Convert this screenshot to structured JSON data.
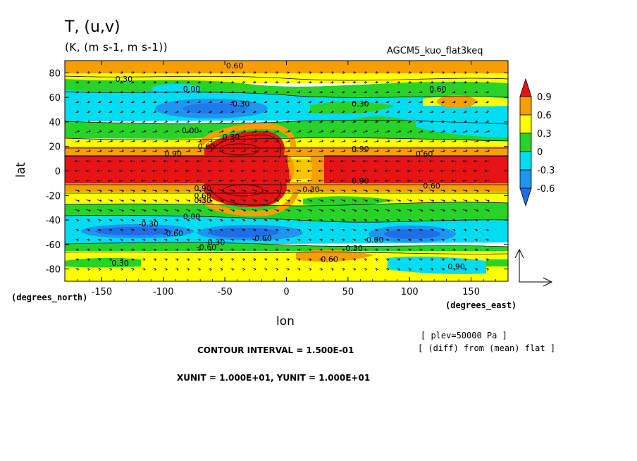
{
  "title": "T, (u,v)",
  "units": "(K, (m s-1, m s-1))",
  "experiment": "AGCM5_kuo_flat3keq",
  "xlabel": "lon",
  "ylabel": "lat",
  "x_unit_label": "(degrees_east)",
  "y_unit_label": "(degrees_north)",
  "plev_note": "[ plev=50000 Pa ]",
  "diff_note": "[ (diff) from (mean) flat ]",
  "contour_interval": "CONTOUR INTERVAL = 1.500E-01",
  "vector_units": "XUNIT = 1.000E+01, YUNIT = 1.000E+01",
  "colors": {
    "below_-0.6": "#1e6ee6",
    "-0.6_-0.3": "#1e96f0",
    "-0.3_0": "#00dcf0",
    "0_0.3": "#28d228",
    "0.3_0.6": "#ffff00",
    "0.6_0.9": "#f5a000",
    "above_0.9": "#e61414"
  },
  "chart_data": {
    "type": "heatmap",
    "title": "T, (u,v)",
    "xlabel": "lon",
    "ylabel": "lat",
    "xlim": [
      -180,
      180
    ],
    "ylim": [
      -90,
      90
    ],
    "x_ticks": [
      "-150",
      "-100",
      "-50",
      "0",
      "50",
      "100",
      "150"
    ],
    "x_tick_values": [
      -150,
      -100,
      -50,
      0,
      50,
      100,
      150
    ],
    "y_ticks": [
      "80",
      "60",
      "40",
      "20",
      "0",
      "-20",
      "-40",
      "-60",
      "-80"
    ],
    "y_tick_values": [
      80,
      60,
      40,
      20,
      0,
      -20,
      -40,
      -60,
      -80
    ],
    "colorbar": {
      "levels": [
        "0.9",
        "0.6",
        "0.3",
        "0",
        "-0.3",
        "-0.6"
      ],
      "level_values": [
        0.9,
        0.6,
        0.3,
        0,
        -0.3,
        -0.6
      ]
    },
    "contour_labels": [
      {
        "text": "0.60",
        "lon": -42,
        "lat": 86
      },
      {
        "text": "0.30",
        "lon": -132,
        "lat": 75
      },
      {
        "text": "0.00",
        "lon": -77,
        "lat": 67
      },
      {
        "text": "0.60",
        "lon": 123,
        "lat": 67
      },
      {
        "text": "-0.30",
        "lon": -38,
        "lat": 55
      },
      {
        "text": "0.30",
        "lon": 60,
        "lat": 55
      },
      {
        "text": "0.00",
        "lon": -78,
        "lat": 33
      },
      {
        "text": "0.30",
        "lon": -45,
        "lat": 28
      },
      {
        "text": "0.60",
        "lon": -65,
        "lat": 20
      },
      {
        "text": "0.90",
        "lon": 60,
        "lat": 18
      },
      {
        "text": "0.90",
        "lon": -92,
        "lat": 14
      },
      {
        "text": "0.60",
        "lon": 112,
        "lat": 14
      },
      {
        "text": "0.90",
        "lon": 60,
        "lat": -8
      },
      {
        "text": "0.60",
        "lon": 118,
        "lat": -12
      },
      {
        "text": "0.90",
        "lon": -68,
        "lat": -14
      },
      {
        "text": "0.30",
        "lon": 20,
        "lat": -15
      },
      {
        "text": "0.60",
        "lon": -68,
        "lat": -20
      },
      {
        "text": "0.30",
        "lon": -68,
        "lat": -24
      },
      {
        "text": "0.00",
        "lon": -77,
        "lat": -37
      },
      {
        "text": "-0.30",
        "lon": -112,
        "lat": -43
      },
      {
        "text": "-0.60",
        "lon": -92,
        "lat": -51
      },
      {
        "text": "-0.30",
        "lon": -58,
        "lat": -58
      },
      {
        "text": "-0.60",
        "lon": -20,
        "lat": -55
      },
      {
        "text": "0.00",
        "lon": 72,
        "lat": -56
      },
      {
        "text": "0.30",
        "lon": 55,
        "lat": -63
      },
      {
        "text": "-0.60",
        "lon": -65,
        "lat": -62
      },
      {
        "text": "0.60",
        "lon": 35,
        "lat": -72
      },
      {
        "text": "0.30",
        "lon": -135,
        "lat": -75
      },
      {
        "text": "0.90",
        "lon": 138,
        "lat": -78
      }
    ]
  }
}
